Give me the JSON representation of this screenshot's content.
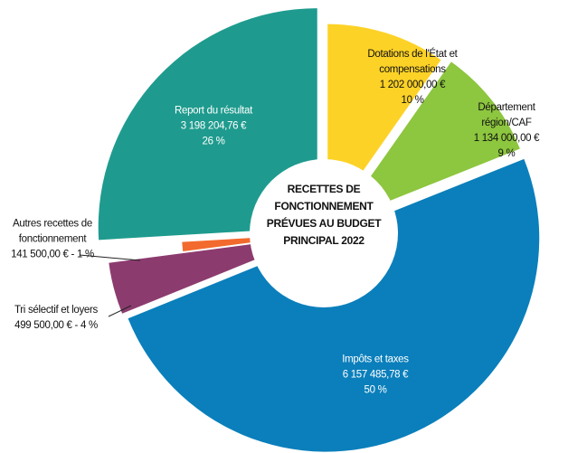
{
  "chart_data": {
    "type": "pie",
    "title": "RECETTES DE FONCTIONNEMENT PRÉVUES AU BUDGET PRINCIPAL 2022",
    "categories": [
      "Dotations de l'État et compensations",
      "Département région/CAF",
      "Impôts et taxes",
      "Tri sélectif et loyers",
      "Autres recettes de fonctionnement",
      "Report du résultat"
    ],
    "values": [
      1202000.0,
      1134000.0,
      6157485.78,
      499500.0,
      141500.0,
      3198204.76
    ],
    "value_labels": [
      "1 202 000,00 €",
      "1 134 000,00 €",
      "6 157 485,78 €",
      "499 500,00 €",
      "141 500,00 €",
      "3 198 204,76 €"
    ],
    "percents": [
      10,
      9,
      50,
      4,
      1,
      26
    ],
    "percent_labels": [
      "10 %",
      "9 %",
      "50 %",
      "4 %",
      "1 %",
      "26 %"
    ],
    "separator": " - ",
    "colors": [
      "#fdd227",
      "#8dc63f",
      "#0a7fbb",
      "#8c3b6f",
      "#f26a2e",
      "#1e9b8e"
    ]
  }
}
